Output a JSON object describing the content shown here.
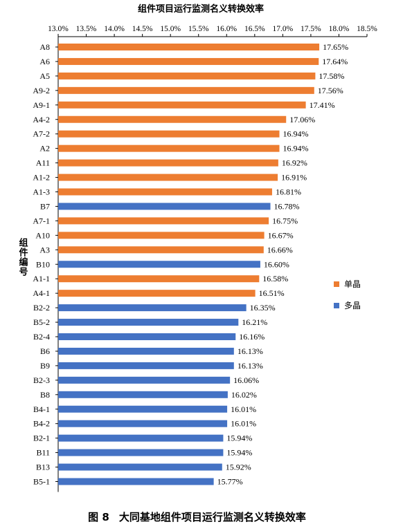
{
  "chart_data": {
    "type": "bar",
    "orientation": "horizontal",
    "title": "组件项目运行监测名义转换效率",
    "ylabel": "组件编号",
    "xlim": [
      13.0,
      18.5
    ],
    "x_ticks": [
      "13.0%",
      "13.5%",
      "14.0%",
      "14.5%",
      "15.0%",
      "15.5%",
      "16.0%",
      "16.5%",
      "17.0%",
      "17.5%",
      "18.0%",
      "18.5%"
    ],
    "x_axis_position": "top",
    "grid": false,
    "legend_position": "right",
    "series": [
      {
        "name": "单晶",
        "color": "#ED7D31"
      },
      {
        "name": "多晶",
        "color": "#4472C4"
      }
    ],
    "categories": [
      "A8",
      "A6",
      "A5",
      "A9-2",
      "A9-1",
      "A4-2",
      "A7-2",
      "A2",
      "A11",
      "A1-2",
      "A1-3",
      "B7",
      "A7-1",
      "A10",
      "A3",
      "B10",
      "A1-1",
      "A4-1",
      "B2-2",
      "B5-2",
      "B2-4",
      "B6",
      "B9",
      "B2-3",
      "B8",
      "B4-1",
      "B4-2",
      "B2-1",
      "B11",
      "B13",
      "B5-1"
    ],
    "values": [
      17.65,
      17.64,
      17.58,
      17.56,
      17.41,
      17.06,
      16.94,
      16.94,
      16.92,
      16.91,
      16.81,
      16.78,
      16.75,
      16.67,
      16.66,
      16.6,
      16.58,
      16.51,
      16.35,
      16.21,
      16.16,
      16.13,
      16.13,
      16.06,
      16.02,
      16.01,
      16.01,
      15.94,
      15.94,
      15.92,
      15.77
    ],
    "value_labels": [
      "17.65%",
      "17.64%",
      "17.58%",
      "17.56%",
      "17.41%",
      "17.06%",
      "16.94%",
      "16.94%",
      "16.92%",
      "16.91%",
      "16.81%",
      "16.78%",
      "16.75%",
      "16.67%",
      "16.66%",
      "16.60%",
      "16.58%",
      "16.51%",
      "16.35%",
      "16.21%",
      "16.16%",
      "16.13%",
      "16.13%",
      "16.06%",
      "16.02%",
      "16.01%",
      "16.01%",
      "15.94%",
      "15.94%",
      "15.92%",
      "15.77%"
    ],
    "bar_series": [
      0,
      0,
      0,
      0,
      0,
      0,
      0,
      0,
      0,
      0,
      0,
      1,
      0,
      0,
      0,
      1,
      0,
      0,
      1,
      1,
      1,
      1,
      1,
      1,
      1,
      1,
      1,
      1,
      1,
      1,
      1
    ]
  },
  "caption": {
    "number": "图 8",
    "text": "大同基地组件项目运行监测名义转换效率"
  }
}
